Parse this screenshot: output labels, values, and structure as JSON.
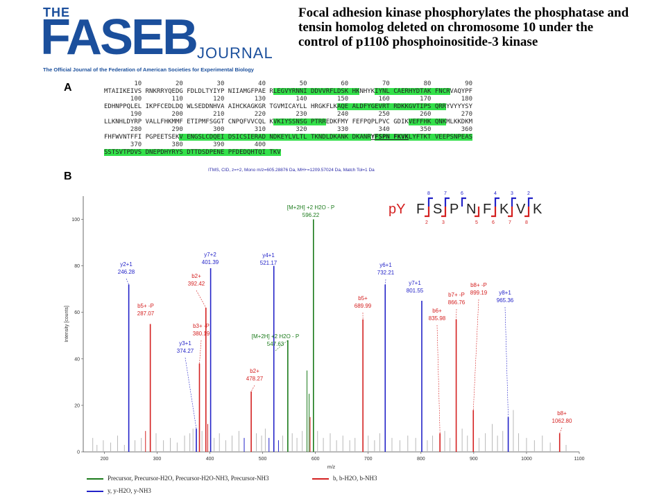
{
  "logo": {
    "the": "THE",
    "faseb": "FASEB",
    "journal": "JOURNAL",
    "tagline": "The Official Journal of the Federation of American Societies for Experimental Biology"
  },
  "title": "Focal adhesion kinase phosphorylates the phosphatase and tensin homolog deleted on chromosome 10 under the control of p110δ phosphoinositide-3 kinase",
  "panel_a": {
    "label": "A",
    "blocks": [
      {
        "nums": "        10         20         30         40         50         60         70         80         90",
        "segs": [
          [
            "MTAIIKEIVS RNKRRYQEDG FDLDLTYIYP NIIAMGFPAE R",
            ""
          ],
          [
            "LEGVYRNNI DDVVRFLDSK HK",
            "hl"
          ],
          [
            "NHYK",
            ""
          ],
          [
            "IYNL CAERHYDTAK FNCR",
            "hl"
          ],
          [
            "VAQYPF",
            ""
          ]
        ]
      },
      {
        "nums": "       100        110        120        130        140        150        160        170        180",
        "segs": [
          [
            "EDHNPPQLEL IKPFCEDLDQ WLSEDDNHVA AIHCKAGKGR TGVMICAYLL HRGKFLK",
            ""
          ],
          [
            "AQE ALDFYGEVRT RDKKGVTIPS QRR",
            "hl"
          ],
          [
            "YVYYYSY",
            ""
          ]
        ]
      },
      {
        "nums": "       190        200        210        220        230        240        250        260        270",
        "segs": [
          [
            "LLKNHLDYRP VALLFHKMMF ETIPMFSGGT CNPQFVVCQL K",
            ""
          ],
          [
            "VKIYSSNSG PTRR",
            "hl"
          ],
          [
            "EDKFMY FEFPQPLPVC GDIK",
            ""
          ],
          [
            "VEFFHK QNK",
            "hl"
          ],
          [
            "MLKKDKM",
            ""
          ]
        ]
      },
      {
        "nums": "       280        290        300        310        320        330        340        350        360",
        "segs": [
          [
            "FHFWVNTFFI PGPEETSEK",
            ""
          ],
          [
            "V ENGSLCDQEI DSICSIERAD NDKEYLVLTL TKNDLDKANK DKANR",
            "hl"
          ],
          [
            "Y",
            "ul"
          ],
          [
            "FSPN FKVK",
            "hl ul"
          ],
          [
            "LYFTKT VEEPSNPEAS",
            "hl"
          ]
        ]
      },
      {
        "nums": "       370        380        390        400",
        "segs": [
          [
            "SSTSVTPDVS DNEPDHYRYS DTTDSDPENE PFDEDQHTQI TKV",
            "hl"
          ]
        ]
      }
    ]
  },
  "panel_b": {
    "label": "B",
    "subhead": "ITMS, CID, z=+2, Mono m/z=605.28876 Da, MH+=1209.57024 Da, Match Tol=1 Da",
    "peptide": {
      "prefix": "pY",
      "residues": [
        "F",
        "S",
        "P",
        "N",
        "F",
        "K",
        "V",
        "K"
      ],
      "top_ions": [
        "8",
        "7",
        "6",
        "4",
        "3",
        "2"
      ],
      "bottom_ions": [
        "2",
        "3",
        "5",
        "6",
        "7",
        "8"
      ]
    },
    "legend": [
      {
        "label": "Precursor, Precursor-H2O, Precursor-H2O-NH3, Precursor-NH3",
        "color": "#1a7a1a"
      },
      {
        "label": "b, b-H2O, b-NH3",
        "color": "#d42020"
      },
      {
        "label": "y, y-H2O, y-NH3",
        "color": "#2222c8"
      }
    ]
  },
  "chart_data": {
    "type": "bar",
    "xlabel": "m/z",
    "ylabel": "Intensity [counts]",
    "xlim": [
      160,
      1100
    ],
    "ylim": [
      0,
      110
    ],
    "xticks": [
      200,
      300,
      400,
      500,
      600,
      700,
      800,
      900,
      1000,
      1100
    ],
    "yticks": [
      0,
      20,
      40,
      60,
      80,
      100
    ],
    "colors": {
      "precursor": "#1a7a1a",
      "b": "#d42020",
      "y": "#2222c8",
      "other": "#b8b8b8"
    },
    "labeled_peaks": [
      {
        "mz": 246.28,
        "i": 72,
        "series": "y",
        "ion": "y2+1",
        "value_label": "246.28"
      },
      {
        "mz": 287.07,
        "i": 55,
        "series": "b",
        "ion": "b5+ -P",
        "value_label": "287.07"
      },
      {
        "mz": 374.27,
        "i": 10,
        "series": "y",
        "ion": "y3+1",
        "value_label": "374.27"
      },
      {
        "mz": 380.19,
        "i": 38,
        "series": "b",
        "ion": "b3+ -P",
        "value_label": "380.19"
      },
      {
        "mz": 392.42,
        "i": 62,
        "series": "b",
        "ion": "b2+",
        "value_label": "392.42"
      },
      {
        "mz": 401.39,
        "i": 79,
        "series": "y",
        "ion": "y7+2",
        "value_label": "401.39"
      },
      {
        "mz": 478.27,
        "i": 26,
        "series": "b",
        "ion": "b2+",
        "value_label": "478.27"
      },
      {
        "mz": 521.17,
        "i": 80,
        "series": "y",
        "ion": "y4+1",
        "value_label": "521.17"
      },
      {
        "mz": 547.63,
        "i": 48,
        "series": "precursor",
        "ion": "[M+2H] +2 H2O - P",
        "value_label": "547.63"
      },
      {
        "mz": 596.22,
        "i": 100,
        "series": "precursor",
        "ion": "[M+2H] +2 H2O - P",
        "value_label": "596.22"
      },
      {
        "mz": 689.99,
        "i": 57,
        "series": "b",
        "ion": "b5+",
        "value_label": "689.99"
      },
      {
        "mz": 732.21,
        "i": 72,
        "series": "y",
        "ion": "y6+1",
        "value_label": "732.21"
      },
      {
        "mz": 801.55,
        "i": 65,
        "series": "y",
        "ion": "y7+1",
        "value_label": "801.55"
      },
      {
        "mz": 835.98,
        "i": 8,
        "series": "b",
        "ion": "b6+",
        "value_label": "835.98"
      },
      {
        "mz": 866.76,
        "i": 57,
        "series": "b",
        "ion": "b7+ -P",
        "value_label": "866.76"
      },
      {
        "mz": 899.19,
        "i": 18,
        "series": "b",
        "ion": "b8+ -P",
        "value_label": "899.19"
      },
      {
        "mz": 965.36,
        "i": 15,
        "series": "y",
        "ion": "y8+1",
        "value_label": "965.36"
      },
      {
        "mz": 1062.8,
        "i": 8,
        "series": "b",
        "ion": "b8+",
        "value_label": "1062.80"
      }
    ],
    "other_peaks": [
      {
        "mz": 178,
        "i": 6,
        "series": "other"
      },
      {
        "mz": 186,
        "i": 3,
        "series": "other"
      },
      {
        "mz": 198,
        "i": 5,
        "series": "other"
      },
      {
        "mz": 212,
        "i": 4,
        "series": "other"
      },
      {
        "mz": 225,
        "i": 7,
        "series": "other"
      },
      {
        "mz": 238,
        "i": 3,
        "series": "other"
      },
      {
        "mz": 258,
        "i": 5,
        "series": "other"
      },
      {
        "mz": 270,
        "i": 6,
        "series": "other"
      },
      {
        "mz": 278,
        "i": 9,
        "series": "b"
      },
      {
        "mz": 298,
        "i": 8,
        "series": "other"
      },
      {
        "mz": 312,
        "i": 5,
        "series": "other"
      },
      {
        "mz": 325,
        "i": 6,
        "series": "other"
      },
      {
        "mz": 338,
        "i": 4,
        "series": "other"
      },
      {
        "mz": 352,
        "i": 7,
        "series": "other"
      },
      {
        "mz": 362,
        "i": 8,
        "series": "other"
      },
      {
        "mz": 368,
        "i": 10,
        "series": "other"
      },
      {
        "mz": 385,
        "i": 9,
        "series": "other"
      },
      {
        "mz": 396,
        "i": 12,
        "series": "b"
      },
      {
        "mz": 408,
        "i": 6,
        "series": "other"
      },
      {
        "mz": 418,
        "i": 8,
        "series": "other"
      },
      {
        "mz": 430,
        "i": 5,
        "series": "other"
      },
      {
        "mz": 442,
        "i": 7,
        "series": "other"
      },
      {
        "mz": 455,
        "i": 9,
        "series": "other"
      },
      {
        "mz": 465,
        "i": 6,
        "series": "y"
      },
      {
        "mz": 488,
        "i": 8,
        "series": "other"
      },
      {
        "mz": 498,
        "i": 7,
        "series": "other"
      },
      {
        "mz": 505,
        "i": 10,
        "series": "other"
      },
      {
        "mz": 512,
        "i": 6,
        "series": "y"
      },
      {
        "mz": 530,
        "i": 5,
        "series": "y"
      },
      {
        "mz": 538,
        "i": 7,
        "series": "other"
      },
      {
        "mz": 556,
        "i": 8,
        "series": "other"
      },
      {
        "mz": 565,
        "i": 6,
        "series": "other"
      },
      {
        "mz": 575,
        "i": 9,
        "series": "other"
      },
      {
        "mz": 584,
        "i": 35,
        "series": "precursor"
      },
      {
        "mz": 588,
        "i": 25,
        "series": "precursor"
      },
      {
        "mz": 590,
        "i": 15,
        "series": "b"
      },
      {
        "mz": 604,
        "i": 9,
        "series": "other"
      },
      {
        "mz": 615,
        "i": 6,
        "series": "other"
      },
      {
        "mz": 628,
        "i": 8,
        "series": "other"
      },
      {
        "mz": 640,
        "i": 5,
        "series": "other"
      },
      {
        "mz": 652,
        "i": 7,
        "series": "other"
      },
      {
        "mz": 665,
        "i": 5,
        "series": "other"
      },
      {
        "mz": 675,
        "i": 6,
        "series": "other"
      },
      {
        "mz": 700,
        "i": 7,
        "series": "other"
      },
      {
        "mz": 712,
        "i": 5,
        "series": "other"
      },
      {
        "mz": 722,
        "i": 8,
        "series": "other"
      },
      {
        "mz": 745,
        "i": 6,
        "series": "other"
      },
      {
        "mz": 760,
        "i": 5,
        "series": "other"
      },
      {
        "mz": 775,
        "i": 7,
        "series": "other"
      },
      {
        "mz": 790,
        "i": 6,
        "series": "other"
      },
      {
        "mz": 812,
        "i": 5,
        "series": "other"
      },
      {
        "mz": 822,
        "i": 7,
        "series": "other"
      },
      {
        "mz": 845,
        "i": 9,
        "series": "other"
      },
      {
        "mz": 855,
        "i": 6,
        "series": "other"
      },
      {
        "mz": 878,
        "i": 10,
        "series": "other"
      },
      {
        "mz": 888,
        "i": 7,
        "series": "other"
      },
      {
        "mz": 910,
        "i": 6,
        "series": "other"
      },
      {
        "mz": 922,
        "i": 8,
        "series": "other"
      },
      {
        "mz": 935,
        "i": 12,
        "series": "other"
      },
      {
        "mz": 945,
        "i": 7,
        "series": "other"
      },
      {
        "mz": 955,
        "i": 9,
        "series": "other"
      },
      {
        "mz": 975,
        "i": 18,
        "series": "other"
      },
      {
        "mz": 985,
        "i": 8,
        "series": "other"
      },
      {
        "mz": 1000,
        "i": 6,
        "series": "other"
      },
      {
        "mz": 1015,
        "i": 5,
        "series": "other"
      },
      {
        "mz": 1030,
        "i": 7,
        "series": "other"
      },
      {
        "mz": 1045,
        "i": 4,
        "series": "other"
      },
      {
        "mz": 1075,
        "i": 3,
        "series": "other"
      }
    ]
  }
}
